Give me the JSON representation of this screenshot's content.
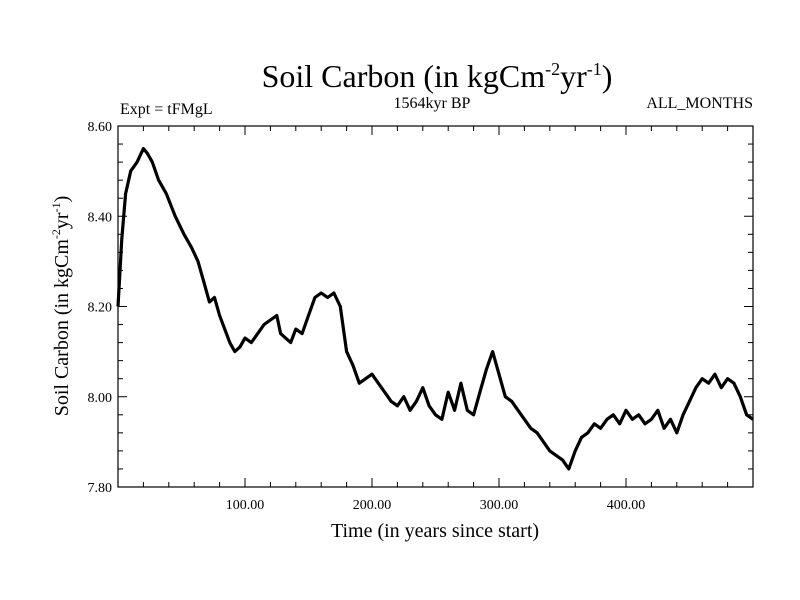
{
  "chart_data": {
    "type": "line",
    "title_main": "Soil Carbon (in kgCm",
    "title_sup1": "-2",
    "title_mid": "yr",
    "title_sup2": "-1",
    "title_end": ")",
    "subtitle_left": "Expt = tFMgL",
    "subtitle_center": "1564kyr BP",
    "subtitle_right": "ALL_MONTHS",
    "xlabel": "Time (in years since start)",
    "ylabel_main": "Soil Carbon (in kgCm",
    "ylabel_sup1": "-2",
    "ylabel_mid": "yr",
    "ylabel_sup2": "-1",
    "ylabel_end": ")",
    "xlim": [
      0,
      500
    ],
    "ylim": [
      7.8,
      8.6
    ],
    "x_ticks": [
      100,
      200,
      300,
      400
    ],
    "x_tick_labels": [
      "100.00",
      "200.00",
      "300.00",
      "400.00"
    ],
    "y_ticks": [
      7.8,
      8.0,
      8.2,
      8.4,
      8.6
    ],
    "y_tick_labels": [
      "7.80",
      "8.00",
      "8.20",
      "8.40",
      "8.60"
    ],
    "series": [
      {
        "name": "Soil Carbon",
        "x": [
          0,
          3,
          6,
          10,
          15,
          20,
          23,
          27,
          32,
          38,
          45,
          52,
          58,
          63,
          68,
          72,
          76,
          80,
          84,
          88,
          92,
          96,
          100,
          105,
          110,
          115,
          120,
          125,
          128,
          132,
          136,
          140,
          145,
          150,
          155,
          160,
          165,
          170,
          175,
          180,
          185,
          190,
          195,
          200,
          205,
          210,
          215,
          220,
          225,
          230,
          235,
          240,
          245,
          250,
          255,
          260,
          265,
          270,
          275,
          280,
          285,
          290,
          295,
          300,
          305,
          310,
          315,
          320,
          325,
          330,
          335,
          340,
          345,
          350,
          355,
          360,
          365,
          370,
          375,
          380,
          385,
          390,
          395,
          400,
          405,
          410,
          415,
          420,
          425,
          430,
          435,
          440,
          445,
          450,
          455,
          460,
          465,
          470,
          475,
          480,
          485,
          490,
          495,
          500
        ],
        "y": [
          8.2,
          8.35,
          8.45,
          8.5,
          8.52,
          8.55,
          8.54,
          8.52,
          8.48,
          8.45,
          8.4,
          8.36,
          8.33,
          8.3,
          8.25,
          8.21,
          8.22,
          8.18,
          8.15,
          8.12,
          8.1,
          8.11,
          8.13,
          8.12,
          8.14,
          8.16,
          8.17,
          8.18,
          8.14,
          8.13,
          8.12,
          8.15,
          8.14,
          8.18,
          8.22,
          8.23,
          8.22,
          8.23,
          8.2,
          8.1,
          8.07,
          8.03,
          8.04,
          8.05,
          8.03,
          8.01,
          7.99,
          7.98,
          8.0,
          7.97,
          7.99,
          8.02,
          7.98,
          7.96,
          7.95,
          8.01,
          7.97,
          8.03,
          7.97,
          7.96,
          8.01,
          8.06,
          8.1,
          8.05,
          8.0,
          7.99,
          7.97,
          7.95,
          7.93,
          7.92,
          7.9,
          7.88,
          7.87,
          7.86,
          7.84,
          7.88,
          7.91,
          7.92,
          7.94,
          7.93,
          7.95,
          7.96,
          7.94,
          7.97,
          7.95,
          7.96,
          7.94,
          7.95,
          7.97,
          7.93,
          7.95,
          7.92,
          7.96,
          7.99,
          8.02,
          8.04,
          8.03,
          8.05,
          8.02,
          8.04,
          8.03,
          8.0,
          7.96,
          7.95
        ]
      }
    ]
  }
}
